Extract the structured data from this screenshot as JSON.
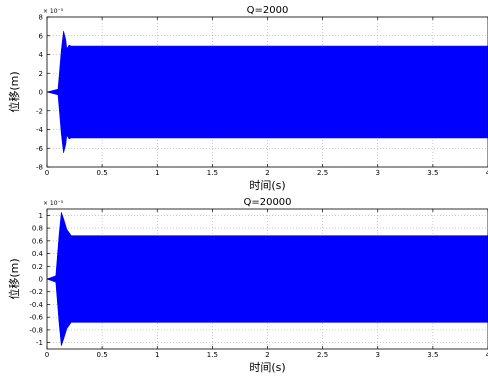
{
  "chart_data": [
    {
      "type": "line",
      "title": "Q=2000",
      "xlabel": "时间(s)",
      "ylabel": "位移(m)",
      "y_multiplier": "× 10⁻⁵",
      "xlim": [
        0,
        4
      ],
      "ylim": [
        -8,
        8
      ],
      "xticks": [
        "0",
        "0.5",
        "1",
        "1.5",
        "2",
        "2.5",
        "3",
        "3.5",
        "4"
      ],
      "yticks": [
        "8",
        "6",
        "4",
        "2",
        "0",
        "-2",
        "-4",
        "-6",
        "-8"
      ],
      "grid": true,
      "series": [
        {
          "color": "#0000ff",
          "envelope_upper": {
            "x": [
              0,
              0.1,
              0.13,
              0.15,
              0.17,
              0.18,
              0.2,
              0.22,
              4
            ],
            "y": [
              0,
              0.3,
              4.5,
              6.5,
              5.6,
              4.6,
              5.0,
              4.9,
              4.9
            ]
          },
          "envelope_lower": {
            "x": [
              0,
              0.1,
              0.13,
              0.15,
              0.17,
              0.18,
              0.2,
              0.22,
              4
            ],
            "y": [
              0,
              -0.3,
              -4.5,
              -6.5,
              -5.6,
              -4.6,
              -5.0,
              -4.9,
              -4.9
            ]
          }
        }
      ]
    },
    {
      "type": "line",
      "title": "Q=20000",
      "xlabel": "时间(s)",
      "ylabel": "位移(m)",
      "y_multiplier": "× 10⁻⁵",
      "xlim": [
        0,
        4
      ],
      "ylim": [
        -1.1,
        1.1
      ],
      "xticks": [
        "0",
        "0.5",
        "1",
        "1.5",
        "2",
        "2.5",
        "3",
        "3.5",
        "4"
      ],
      "yticks": [
        "1",
        "0.8",
        "0.6",
        "0.4",
        "0.2",
        "0",
        "-0.2",
        "-0.4",
        "-0.6",
        "-0.8",
        "-1"
      ],
      "grid": true,
      "series": [
        {
          "color": "#0000ff",
          "envelope_upper": {
            "x": [
              0,
              0.08,
              0.11,
              0.13,
              0.15,
              0.18,
              0.22,
              0.25,
              4
            ],
            "y": [
              0,
              0.05,
              0.7,
              1.05,
              0.95,
              0.78,
              0.68,
              0.68,
              0.68
            ]
          },
          "envelope_lower": {
            "x": [
              0,
              0.08,
              0.11,
              0.13,
              0.15,
              0.18,
              0.22,
              0.25,
              4
            ],
            "y": [
              0,
              -0.05,
              -0.7,
              -1.05,
              -0.95,
              -0.78,
              -0.68,
              -0.68,
              -0.68
            ]
          }
        }
      ]
    }
  ]
}
